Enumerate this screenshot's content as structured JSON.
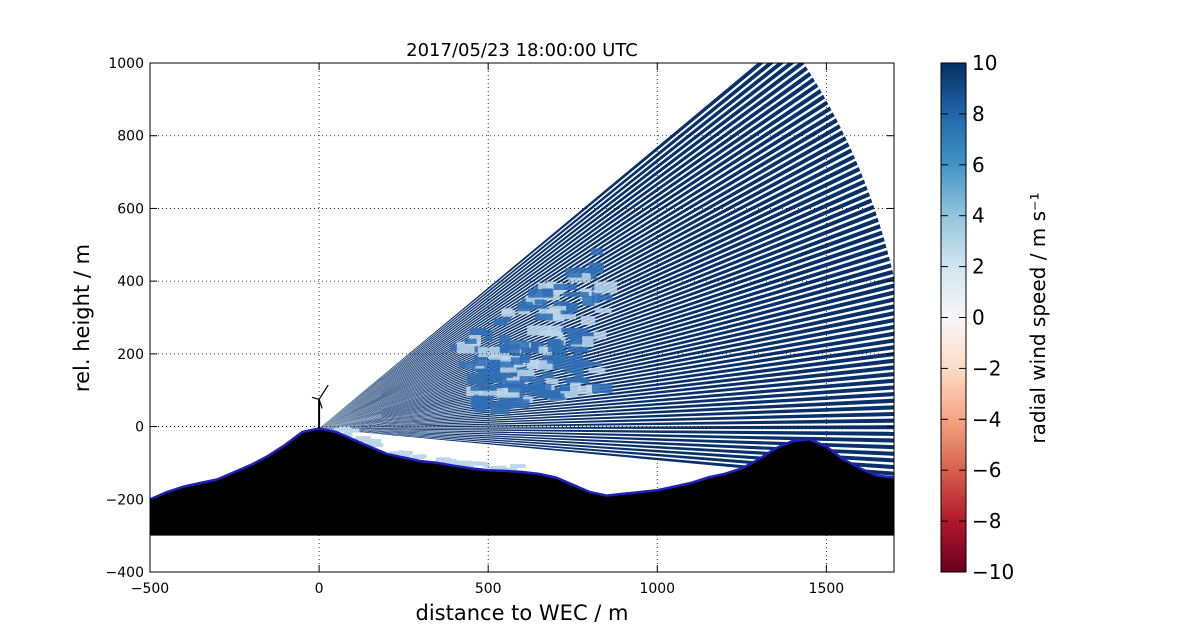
{
  "chart_data": {
    "type": "heatmap",
    "title": "2017/05/23 18:00:00 UTC",
    "xlabel": "distance to WEC / m",
    "ylabel": "rel. height / m",
    "xlim": [
      -500,
      1700
    ],
    "ylim": [
      -400,
      1000
    ],
    "x_ticks": [
      -500,
      0,
      500,
      1000,
      1500
    ],
    "y_ticks": [
      -400,
      -200,
      0,
      200,
      400,
      600,
      800,
      1000
    ],
    "grid": true,
    "grid_style": "dotted",
    "colorbar": {
      "label": "radial wind speed / m s⁻¹",
      "range": [
        -10,
        10
      ],
      "ticks": [
        10,
        8,
        6,
        4,
        2,
        0,
        -2,
        -4,
        -6,
        -8,
        -10
      ],
      "colormap": "RdBu",
      "stops": [
        "#67001f",
        "#b2182b",
        "#d6604d",
        "#f4a582",
        "#fddbc7",
        "#f7f7f7",
        "#d1e5f0",
        "#92c5de",
        "#4393c3",
        "#2166ac",
        "#053061"
      ]
    },
    "scan": {
      "origin": [
        0,
        -5
      ],
      "min_elevation_deg": -5,
      "max_elevation_deg": 38,
      "beam_count": 70,
      "max_range_m": 1750,
      "dominant_speed": 10,
      "colors": {
        "saturated": "#08306b",
        "mid": "#2f6fb5",
        "light": "#bcd6ea"
      }
    },
    "terrain": {
      "color": "#000000",
      "outline_color": "#1f1fbf",
      "bottom": -300,
      "profile": [
        [
          -500,
          -200
        ],
        [
          -450,
          -180
        ],
        [
          -400,
          -165
        ],
        [
          -350,
          -155
        ],
        [
          -300,
          -145
        ],
        [
          -250,
          -125
        ],
        [
          -200,
          -105
        ],
        [
          -150,
          -80
        ],
        [
          -100,
          -50
        ],
        [
          -50,
          -15
        ],
        [
          0,
          -5
        ],
        [
          50,
          -15
        ],
        [
          100,
          -35
        ],
        [
          150,
          -55
        ],
        [
          200,
          -75
        ],
        [
          250,
          -85
        ],
        [
          300,
          -95
        ],
        [
          350,
          -100
        ],
        [
          400,
          -108
        ],
        [
          450,
          -115
        ],
        [
          500,
          -120
        ],
        [
          550,
          -122
        ],
        [
          600,
          -125
        ],
        [
          650,
          -130
        ],
        [
          700,
          -140
        ],
        [
          750,
          -160
        ],
        [
          800,
          -180
        ],
        [
          850,
          -190
        ],
        [
          900,
          -185
        ],
        [
          950,
          -180
        ],
        [
          1000,
          -175
        ],
        [
          1050,
          -165
        ],
        [
          1100,
          -155
        ],
        [
          1150,
          -140
        ],
        [
          1200,
          -130
        ],
        [
          1250,
          -115
        ],
        [
          1300,
          -90
        ],
        [
          1350,
          -60
        ],
        [
          1400,
          -40
        ],
        [
          1450,
          -35
        ],
        [
          1500,
          -55
        ],
        [
          1550,
          -90
        ],
        [
          1600,
          -115
        ],
        [
          1650,
          -135
        ],
        [
          1700,
          -140
        ]
      ]
    },
    "wec": {
      "x": 0,
      "hub_height": 75,
      "rotor_radius": 30
    }
  }
}
